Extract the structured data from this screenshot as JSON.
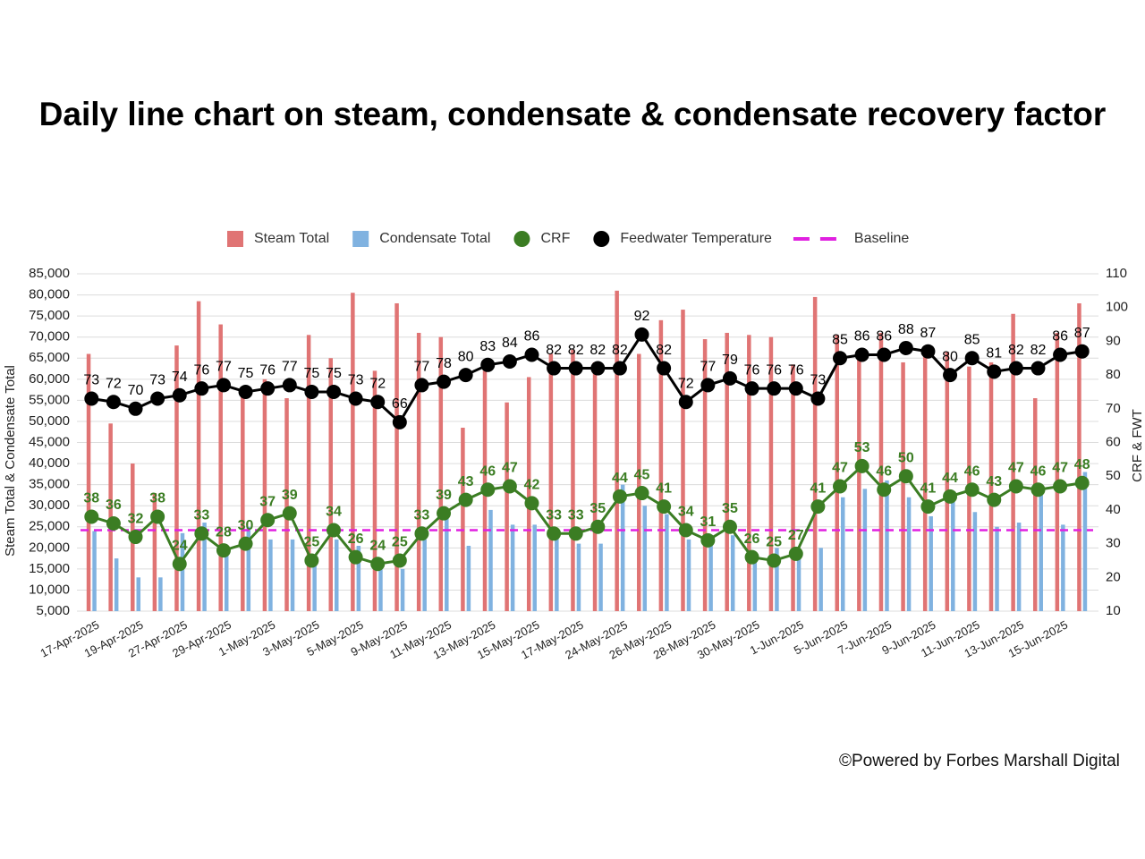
{
  "chart_data": {
    "type": "combo",
    "title": "Daily line chart on steam, condensate & condensate recovery factor",
    "ylabel": "Steam Total & Condensate Total",
    "y2label": "CRF & FWT",
    "categories": [
      "17-Apr-2025",
      null,
      "19-Apr-2025",
      null,
      "27-Apr-2025",
      null,
      "29-Apr-2025",
      null,
      "1-May-2025",
      null,
      "3-May-2025",
      null,
      "5-May-2025",
      null,
      "9-May-2025",
      null,
      "11-May-2025",
      null,
      "13-May-2025",
      null,
      "15-May-2025",
      null,
      "17-May-2025",
      null,
      "24-May-2025",
      null,
      "26-May-2025",
      null,
      "28-May-2025",
      null,
      "30-May-2025",
      null,
      "1-Jun-2025",
      null,
      "5-Jun-2025",
      null,
      "7-Jun-2025",
      null,
      "9-Jun-2025",
      null,
      "11-Jun-2025",
      null,
      "13-Jun-2025",
      null,
      "15-Jun-2025",
      null
    ],
    "series": [
      {
        "name": "Steam Total",
        "type": "bar",
        "color": "#e07474",
        "values": [
          66000,
          49500,
          40000,
          33000,
          68000,
          78500,
          73000,
          58000,
          60000,
          55500,
          70500,
          65000,
          80500,
          62000,
          78000,
          71000,
          70000,
          48500,
          62000,
          54500,
          60500,
          66000,
          67000,
          64000,
          81000,
          66000,
          74000,
          76500,
          69500,
          71000,
          70500,
          70000,
          63500,
          79500,
          70500,
          67000,
          71000,
          64000,
          66500,
          66500,
          63000,
          64000,
          75500,
          55500,
          71000,
          78000
        ]
      },
      {
        "name": "Condensate Total",
        "type": "bar",
        "color": "#80b2e0",
        "values": [
          24000,
          17500,
          13000,
          13000,
          23500,
          26000,
          19000,
          25000,
          22000,
          22000,
          17000,
          22000,
          20500,
          16500,
          15000,
          22000,
          27000,
          20500,
          29000,
          25500,
          25500,
          23000,
          21000,
          21000,
          35000,
          30000,
          28000,
          22000,
          22000,
          23000,
          18000,
          20000,
          19000,
          20000,
          32000,
          34000,
          36000,
          32000,
          27500,
          31000,
          28500,
          25000,
          26000,
          34000,
          25500,
          38000
        ]
      },
      {
        "name": "CRF",
        "type": "line",
        "axis": "y2",
        "color": "#3b7d23",
        "values": [
          38,
          36,
          32,
          38,
          24,
          33,
          28,
          30,
          37,
          39,
          25,
          34,
          26,
          24,
          25,
          33,
          39,
          43,
          46,
          47,
          42,
          33,
          33,
          35,
          44,
          45,
          41,
          34,
          31,
          35,
          26,
          25,
          27,
          41,
          47,
          53,
          46,
          50,
          41,
          44,
          46,
          43,
          47,
          46,
          47,
          48
        ]
      },
      {
        "name": "Feedwater Temperature",
        "type": "line",
        "axis": "y2",
        "color": "#000000",
        "values": [
          73,
          72,
          70,
          73,
          74,
          76,
          77,
          75,
          76,
          77,
          75,
          75,
          73,
          72,
          66,
          77,
          78,
          80,
          83,
          84,
          86,
          82,
          82,
          82,
          82,
          92,
          82,
          72,
          77,
          79,
          76,
          76,
          76,
          73,
          85,
          86,
          86,
          88,
          87,
          80,
          85,
          81,
          82,
          82,
          86,
          87
        ]
      }
    ],
    "baseline": {
      "name": "Baseline",
      "value": 34,
      "axis": "y2",
      "color": "#e020e0"
    },
    "ylim": [
      5000,
      85000
    ],
    "yticks": [
      {
        "value": 5000,
        "label": "5,000"
      },
      {
        "value": 10000,
        "label": "10,000"
      },
      {
        "value": 15000,
        "label": "15,000"
      },
      {
        "value": 20000,
        "label": "20,000"
      },
      {
        "value": 25000,
        "label": "25,000"
      },
      {
        "value": 30000,
        "label": "30,000"
      },
      {
        "value": 35000,
        "label": "35,000"
      },
      {
        "value": 40000,
        "label": "40,000"
      },
      {
        "value": 45000,
        "label": "45,000"
      },
      {
        "value": 50000,
        "label": "50,000"
      },
      {
        "value": 55000,
        "label": "55,000"
      },
      {
        "value": 60000,
        "label": "60,000"
      },
      {
        "value": 65000,
        "label": "65,000"
      },
      {
        "value": 70000,
        "label": "70,000"
      },
      {
        "value": 75000,
        "label": "75,000"
      },
      {
        "value": 80000,
        "label": "80,000"
      },
      {
        "value": 85000,
        "label": "85,000"
      }
    ],
    "y2lim": [
      10,
      110
    ],
    "y2ticks": [
      10,
      20,
      30,
      40,
      50,
      60,
      70,
      80,
      90,
      100,
      110
    ],
    "grid": true,
    "legend": "top"
  },
  "footer": "©Powered by Forbes Marshall Digital"
}
